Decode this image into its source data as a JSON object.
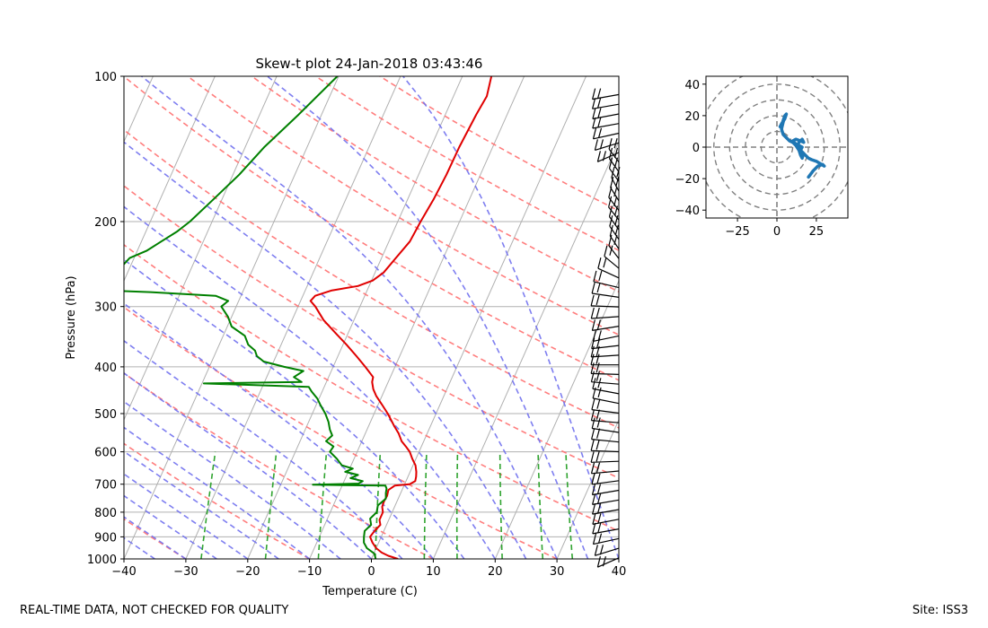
{
  "chart_data": [
    {
      "type": "line",
      "subtype": "skew-t",
      "title": "Skew-t plot 24-Jan-2018 03:43:46",
      "xlabel": "Temperature (C)",
      "ylabel": "Pressure (hPa)",
      "xlim": [
        -40,
        40
      ],
      "ylim": [
        1000,
        100
      ],
      "x_ticks": [
        -40,
        -30,
        -20,
        -10,
        0,
        10,
        20,
        30,
        40
      ],
      "y_ticks": [
        1000,
        900,
        800,
        700,
        600,
        500,
        400,
        300,
        200,
        100
      ],
      "grid": true,
      "series": [
        {
          "name": "Temperature",
          "color": "#e00000",
          "points": [
            [
              1000,
              4.3
            ],
            [
              985,
              2.5
            ],
            [
              970,
              1.2
            ],
            [
              950,
              0.0
            ],
            [
              925,
              -1.0
            ],
            [
              900,
              -1.8
            ],
            [
              875,
              -1.5
            ],
            [
              850,
              -1.0
            ],
            [
              830,
              -1.5
            ],
            [
              800,
              -1.5
            ],
            [
              780,
              -2.0
            ],
            [
              760,
              -2.1
            ],
            [
              740,
              -2.0
            ],
            [
              720,
              -2.2
            ],
            [
              705,
              -1.5
            ],
            [
              700,
              0.8
            ],
            [
              690,
              1.5
            ],
            [
              675,
              1.3
            ],
            [
              660,
              1.0
            ],
            [
              640,
              0.4
            ],
            [
              620,
              -0.6
            ],
            [
              600,
              -1.5
            ],
            [
              585,
              -2.5
            ],
            [
              570,
              -3.6
            ],
            [
              550,
              -4.6
            ],
            [
              530,
              -5.9
            ],
            [
              500,
              -7.8
            ],
            [
              480,
              -9.3
            ],
            [
              460,
              -10.9
            ],
            [
              445,
              -11.9
            ],
            [
              430,
              -12.6
            ],
            [
              420,
              -12.8
            ],
            [
              400,
              -14.8
            ],
            [
              380,
              -17.0
            ],
            [
              360,
              -19.4
            ],
            [
              340,
              -22.1
            ],
            [
              320,
              -24.9
            ],
            [
              300,
              -27.2
            ],
            [
              292,
              -28.4
            ],
            [
              285,
              -28.0
            ],
            [
              278,
              -25.8
            ],
            [
              272,
              -21.8
            ],
            [
              265,
              -19.8
            ],
            [
              255,
              -18.6
            ],
            [
              240,
              -17.8
            ],
            [
              220,
              -16.6
            ],
            [
              200,
              -16.3
            ],
            [
              180,
              -15.8
            ],
            [
              160,
              -15.5
            ],
            [
              140,
              -15.4
            ],
            [
              120,
              -15.0
            ],
            [
              110,
              -14.6
            ],
            [
              100,
              -15.3
            ]
          ]
        },
        {
          "name": "Dewpoint",
          "color": "#008000",
          "points": [
            [
              1000,
              0.7
            ],
            [
              975,
              0.1
            ],
            [
              950,
              -1.5
            ],
            [
              925,
              -2.4
            ],
            [
              900,
              -2.8
            ],
            [
              875,
              -3.1
            ],
            [
              850,
              -2.5
            ],
            [
              825,
              -3.1
            ],
            [
              800,
              -2.5
            ],
            [
              775,
              -2.8
            ],
            [
              750,
              -2.0
            ],
            [
              730,
              -2.4
            ],
            [
              715,
              -2.6
            ],
            [
              705,
              -3.0
            ],
            [
              702,
              -14.8
            ],
            [
              698,
              -7.5
            ],
            [
              690,
              -7.0
            ],
            [
              680,
              -9.2
            ],
            [
              670,
              -8.2
            ],
            [
              660,
              -10.5
            ],
            [
              650,
              -9.5
            ],
            [
              640,
              -11.5
            ],
            [
              620,
              -12.8
            ],
            [
              600,
              -14.4
            ],
            [
              585,
              -14.2
            ],
            [
              570,
              -15.8
            ],
            [
              555,
              -15.2
            ],
            [
              540,
              -16.0
            ],
            [
              520,
              -16.8
            ],
            [
              500,
              -17.9
            ],
            [
              480,
              -19.3
            ],
            [
              465,
              -20.3
            ],
            [
              450,
              -21.7
            ],
            [
              440,
              -22.5
            ],
            [
              433,
              -39.7
            ],
            [
              430,
              -24.0
            ],
            [
              420,
              -25.6
            ],
            [
              408,
              -24.5
            ],
            [
              400,
              -27.9
            ],
            [
              390,
              -31.6
            ],
            [
              380,
              -33.1
            ],
            [
              370,
              -33.8
            ],
            [
              360,
              -35.3
            ],
            [
              345,
              -36.5
            ],
            [
              330,
              -39.3
            ],
            [
              315,
              -40.6
            ],
            [
              300,
              -42.4
            ],
            [
              292,
              -41.7
            ],
            [
              285,
              -44.1
            ],
            [
              280,
              -54.9
            ],
            [
              277,
              -64.3
            ],
            [
              272,
              -63.3
            ],
            [
              265,
              -63.9
            ],
            [
              258,
              -62.6
            ],
            [
              252,
              -62.9
            ],
            [
              245,
              -61.2
            ],
            [
              238,
              -60.7
            ],
            [
              230,
              -58.5
            ],
            [
              220,
              -56.8
            ],
            [
              210,
              -55.0
            ],
            [
              200,
              -53.6
            ],
            [
              180,
              -51.4
            ],
            [
              160,
              -49.0
            ],
            [
              140,
              -46.9
            ],
            [
              120,
              -43.7
            ],
            [
              100,
              -40.2
            ]
          ]
        }
      ]
    },
    {
      "type": "scatter",
      "subtype": "hodograph",
      "xlim": [
        -45,
        45
      ],
      "ylim": [
        -45,
        45
      ],
      "x_ticks": [
        -25,
        0,
        25
      ],
      "y_ticks": [
        -40,
        -20,
        0,
        20,
        40
      ],
      "rings": [
        10,
        20,
        30,
        40,
        50
      ],
      "series": [
        {
          "name": "Wind",
          "color": "#1f77b4",
          "points": [
            [
              20,
              -19
            ],
            [
              23,
              -15
            ],
            [
              26,
              -12
            ],
            [
              29,
              -11
            ],
            [
              30,
              -12
            ],
            [
              25,
              -9
            ],
            [
              22,
              -8
            ],
            [
              20,
              -7
            ],
            [
              18,
              -5
            ],
            [
              16,
              -3
            ],
            [
              14,
              -1
            ],
            [
              13,
              1
            ],
            [
              14,
              3
            ],
            [
              16,
              5
            ],
            [
              17,
              3
            ],
            [
              15,
              4
            ],
            [
              12,
              5
            ],
            [
              10,
              4
            ],
            [
              12,
              2
            ],
            [
              14,
              1
            ],
            [
              16,
              0
            ],
            [
              15,
              -2
            ],
            [
              17,
              -4
            ],
            [
              16,
              -7
            ],
            [
              15,
              -5
            ],
            [
              14,
              -2
            ],
            [
              12,
              1
            ],
            [
              10,
              3
            ],
            [
              8,
              4
            ],
            [
              6,
              6
            ],
            [
              4,
              8
            ],
            [
              3,
              11
            ],
            [
              3,
              14
            ],
            [
              4,
              17
            ],
            [
              5,
              20
            ],
            [
              6,
              21
            ],
            [
              5,
              18
            ],
            [
              3,
              15
            ],
            [
              2,
              13
            ],
            [
              3,
              12
            ],
            [
              4,
              16
            ],
            [
              5,
              19
            ]
          ]
        }
      ]
    }
  ],
  "footer": {
    "left": "REAL-TIME DATA, NOT CHECKED FOR QUALITY",
    "right": "Site: ISS3"
  }
}
